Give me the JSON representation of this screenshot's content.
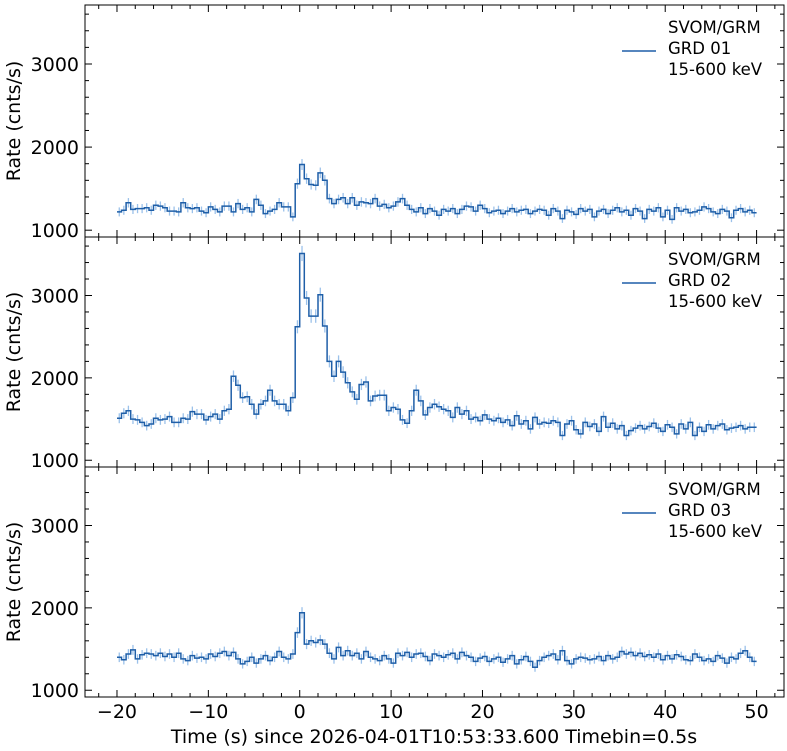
{
  "chart_data": {
    "type": "line",
    "style": "step histogram with error bars",
    "xlabel": "Time (s) since 2026-04-01T10:53:33.600 Timebin=0.5s",
    "ylabel": "Rate (cnts/s)",
    "xlim": [
      -23.5,
      53.0
    ],
    "ylim": [
      918,
      3710
    ],
    "x_ticks": [
      -20,
      -10,
      0,
      10,
      20,
      30,
      40,
      50
    ],
    "x_tick_labels": [
      "−20",
      "−10",
      "0",
      "10",
      "20",
      "30",
      "40",
      "50"
    ],
    "y_ticks": [
      1000,
      2000,
      3000
    ],
    "y_tick_labels": [
      "1000",
      "2000",
      "3000"
    ],
    "bin_start": -20,
    "bin_width": 0.5,
    "line_color": "#1f5fa8",
    "errorbar_color": "#4a90d9",
    "legend_position": "top-right",
    "panels": [
      {
        "legend": [
          "SVOM/GRM",
          "GRD 01",
          "15-600 keV"
        ],
        "values": [
          1220,
          1240,
          1330,
          1250,
          1260,
          1260,
          1270,
          1240,
          1300,
          1290,
          1270,
          1230,
          1230,
          1220,
          1330,
          1270,
          1260,
          1270,
          1230,
          1210,
          1280,
          1250,
          1220,
          1290,
          1290,
          1220,
          1320,
          1250,
          1270,
          1220,
          1370,
          1300,
          1200,
          1230,
          1250,
          1330,
          1280,
          1280,
          1160,
          1560,
          1790,
          1620,
          1550,
          1540,
          1690,
          1600,
          1380,
          1320,
          1370,
          1390,
          1320,
          1390,
          1300,
          1340,
          1330,
          1320,
          1380,
          1290,
          1310,
          1270,
          1290,
          1340,
          1380,
          1300,
          1250,
          1220,
          1270,
          1200,
          1260,
          1230,
          1180,
          1250,
          1230,
          1260,
          1200,
          1250,
          1290,
          1280,
          1230,
          1300,
          1260,
          1210,
          1230,
          1240,
          1200,
          1230,
          1260,
          1220,
          1240,
          1250,
          1200,
          1230,
          1250,
          1240,
          1180,
          1260,
          1230,
          1140,
          1240,
          1220,
          1190,
          1260,
          1230,
          1250,
          1160,
          1230,
          1250,
          1200,
          1240,
          1270,
          1220,
          1240,
          1180,
          1260,
          1230,
          1140,
          1250,
          1230,
          1270,
          1160,
          1240,
          1130,
          1270,
          1230,
          1250,
          1210,
          1220,
          1240,
          1280,
          1260,
          1220,
          1200,
          1250,
          1230,
          1150,
          1240,
          1260,
          1220,
          1240,
          1210
        ]
      },
      {
        "legend": [
          "SVOM/GRM",
          "GRD 02",
          "15-600 keV"
        ],
        "values": [
          1510,
          1570,
          1600,
          1500,
          1490,
          1460,
          1420,
          1440,
          1510,
          1490,
          1500,
          1530,
          1460,
          1460,
          1510,
          1500,
          1590,
          1560,
          1560,
          1490,
          1530,
          1560,
          1500,
          1600,
          1620,
          2020,
          1910,
          1760,
          1770,
          1680,
          1560,
          1680,
          1720,
          1850,
          1720,
          1680,
          1680,
          1600,
          1760,
          2620,
          3510,
          2970,
          2750,
          2750,
          3010,
          2630,
          2200,
          2020,
          2200,
          2070,
          1940,
          1830,
          1740,
          1920,
          1950,
          1720,
          1780,
          1790,
          1790,
          1600,
          1640,
          1620,
          1490,
          1450,
          1600,
          1850,
          1720,
          1550,
          1640,
          1680,
          1650,
          1620,
          1600,
          1520,
          1640,
          1560,
          1600,
          1500,
          1520,
          1480,
          1550,
          1500,
          1480,
          1510,
          1460,
          1490,
          1420,
          1540,
          1440,
          1480,
          1380,
          1520,
          1440,
          1460,
          1450,
          1480,
          1460,
          1300,
          1440,
          1480,
          1370,
          1320,
          1460,
          1410,
          1440,
          1350,
          1530,
          1400,
          1450,
          1380,
          1420,
          1300,
          1360,
          1390,
          1420,
          1380,
          1410,
          1450,
          1390,
          1350,
          1430,
          1400,
          1320,
          1440,
          1380,
          1460,
          1300,
          1400,
          1350,
          1430,
          1380,
          1420,
          1440,
          1370,
          1390,
          1400,
          1420,
          1380,
          1400,
          1400
        ]
      },
      {
        "legend": [
          "SVOM/GRM",
          "GRD 03",
          "15-600 keV"
        ],
        "values": [
          1400,
          1370,
          1440,
          1490,
          1380,
          1430,
          1450,
          1440,
          1420,
          1450,
          1410,
          1440,
          1400,
          1450,
          1380,
          1360,
          1420,
          1390,
          1400,
          1380,
          1440,
          1410,
          1450,
          1470,
          1420,
          1460,
          1380,
          1320,
          1350,
          1400,
          1330,
          1380,
          1420,
          1360,
          1400,
          1470,
          1400,
          1380,
          1440,
          1700,
          1940,
          1560,
          1600,
          1580,
          1610,
          1560,
          1450,
          1380,
          1520,
          1420,
          1480,
          1420,
          1450,
          1380,
          1470,
          1400,
          1380,
          1360,
          1420,
          1380,
          1330,
          1450,
          1420,
          1460,
          1400,
          1440,
          1450,
          1410,
          1360,
          1440,
          1420,
          1400,
          1430,
          1450,
          1380,
          1460,
          1420,
          1400,
          1350,
          1390,
          1410,
          1350,
          1380,
          1400,
          1340,
          1380,
          1420,
          1320,
          1370,
          1410,
          1350,
          1280,
          1360,
          1400,
          1420,
          1440,
          1370,
          1480,
          1360,
          1320,
          1380,
          1400,
          1390,
          1370,
          1380,
          1410,
          1360,
          1420,
          1380,
          1400,
          1470,
          1440,
          1460,
          1420,
          1450,
          1410,
          1430,
          1400,
          1440,
          1370,
          1420,
          1380,
          1430,
          1410,
          1370,
          1360,
          1440,
          1400,
          1360,
          1380,
          1350,
          1420,
          1390,
          1330,
          1400,
          1380,
          1450,
          1480,
          1400,
          1350
        ]
      }
    ]
  }
}
